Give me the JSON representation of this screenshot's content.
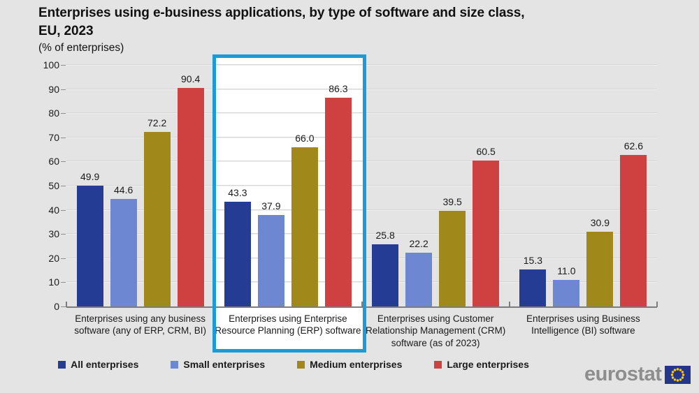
{
  "title": "Enterprises using e-business applications, by type of software and size class, EU, 2023",
  "subtitle": "(% of enterprises)",
  "branding": {
    "logo_text": "eurostat",
    "logo_text_color": "#8d8d8d",
    "flag_color": "#26358c",
    "star_color": "#ffcc00"
  },
  "chart_data": {
    "type": "bar",
    "title": "Enterprises using e-business applications, by type of software and size class, EU, 2023",
    "subtitle": "(% of enterprises)",
    "categories": [
      "Enterprises using any business software (any of ERP, CRM, BI)",
      "Enterprises using Enterprise Resource Planning (ERP) software",
      "Enterprises using Customer Relationship Management (CRM) software (as of 2023)",
      "Enterprises using Business Intelligence (BI) software"
    ],
    "series": [
      {
        "name": "All enterprises",
        "color": "#253c94",
        "values": [
          49.9,
          43.3,
          25.8,
          15.3
        ]
      },
      {
        "name": "Small enterprises",
        "color": "#6e87d2",
        "values": [
          44.6,
          37.9,
          22.2,
          11.0
        ]
      },
      {
        "name": "Medium enterprises",
        "color": "#a1881b",
        "values": [
          72.2,
          66.0,
          39.5,
          30.9
        ]
      },
      {
        "name": "Large enterprises",
        "color": "#cf4040",
        "values": [
          90.4,
          86.3,
          60.5,
          62.6
        ]
      }
    ],
    "ylim": [
      0,
      100
    ],
    "ytick_step": 10,
    "grid": true,
    "value_labels": true,
    "legend_position": "bottom",
    "highlight": {
      "category_index": 1,
      "border_color": "#1a9cd8",
      "fill": "#ffffff"
    }
  }
}
